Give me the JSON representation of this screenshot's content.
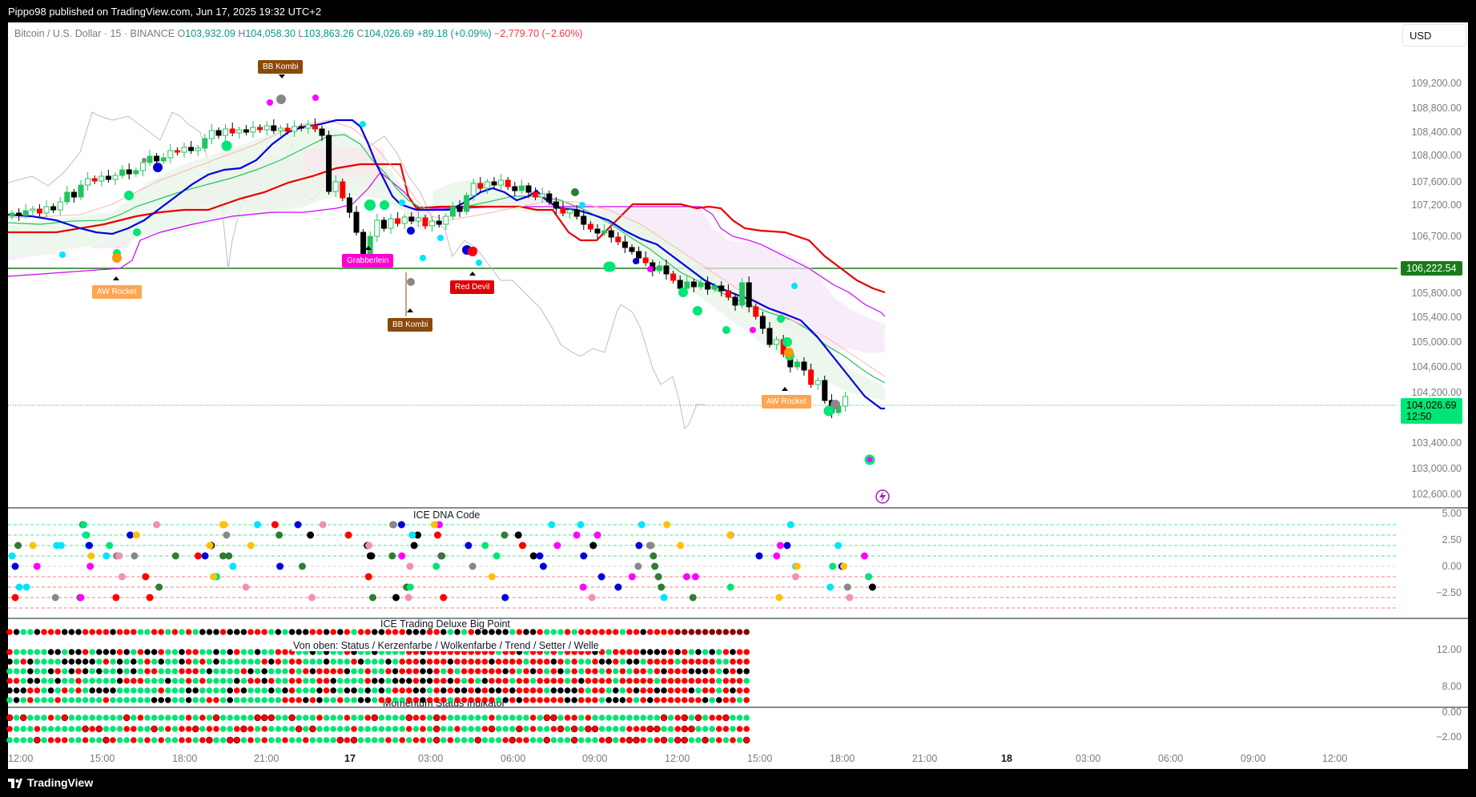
{
  "header": {
    "published": "Pippo98 published on TradingView.com, Jun 17, 2025 19:32 UTC+2"
  },
  "legend": {
    "symbol": "Bitcoin / U.S. Dollar · 15 · BINANCE",
    "o_label": "O",
    "o": "103,932.09",
    "h_label": "H",
    "h": "104,058.30",
    "l_label": "L",
    "l": "103,863.26",
    "c_label": "C",
    "c": "104,026.69",
    "change": "+89.18 (+0.09%)",
    "change2": "−2,779.70 (−2.60%)"
  },
  "currency": "USD",
  "price_axis": [
    "109,200.00",
    "108,800.00",
    "108,400.00",
    "108,000.00",
    "107,600.00",
    "107,200.00",
    "106,700.00",
    "105,800.00",
    "105,400.00",
    "105,000.00",
    "104,600.00",
    "104,200.00",
    "103,400.00",
    "103,000.00",
    "102,600.00"
  ],
  "hline": {
    "price": "106,222.54"
  },
  "last_price": {
    "price": "104,026.69",
    "countdown": "12:50"
  },
  "time_axis": [
    "12:00",
    "15:00",
    "18:00",
    "21:00",
    "17",
    "03:00",
    "06:00",
    "09:00",
    "12:00",
    "15:00",
    "18:00",
    "21:00",
    "18",
    "03:00",
    "06:00",
    "09:00",
    "12:00"
  ],
  "signals": {
    "bb_kombi_1": "BB Kombi",
    "bb_kombi_2": "BB Kombi",
    "aw_rocket_1": "AW Rocket",
    "aw_rocket_2": "AW Rocket",
    "grabberlein": "Grabberlein",
    "red_devil": "Red Devil"
  },
  "panes": {
    "dna": {
      "title": "ICE DNA Code",
      "axis": [
        "5.00",
        "2.50",
        "0.00",
        "−2.50"
      ]
    },
    "deluxe": {
      "title": "ICE Trading Deluxe Big Point",
      "subtitle": "Von oben: Status / Kerzenfarbe / Wolkenfarbe / Trend / Setter / Welle",
      "axis": [
        "12.00",
        "8.00"
      ]
    },
    "momentum": {
      "title": "Momentum Status Indikator",
      "axis": [
        "0.00",
        "−2.00"
      ]
    }
  },
  "footer": {
    "brand": "TradingView"
  },
  "colors": {
    "up": "#22c55e",
    "down": "#ff0000",
    "blue": "#0000dd",
    "hline": "#1b7a1b",
    "pink": "#ff00ff"
  }
}
